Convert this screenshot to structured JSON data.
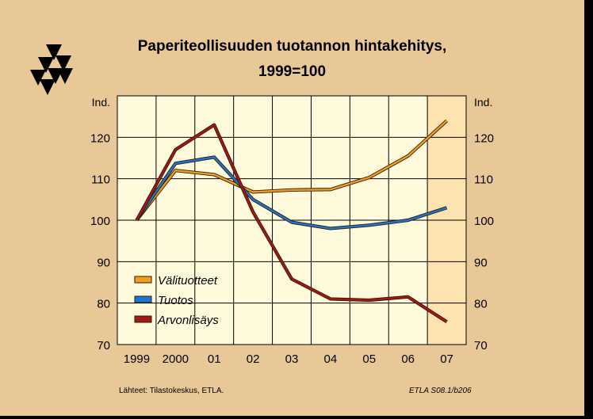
{
  "chart_data": {
    "type": "line",
    "title": "Paperiteollisuuden tuotannon hintakehitys,",
    "subtitle": "1999=100",
    "ylabel": "Ind.",
    "ylabel_right": "Ind.",
    "categories": [
      "1999",
      "2000",
      "01",
      "02",
      "03",
      "04",
      "05",
      "06",
      "07"
    ],
    "ylim": [
      70,
      130
    ],
    "yticks": [
      70,
      80,
      90,
      100,
      110,
      120
    ],
    "grid": true,
    "legend_position": "bottom-left",
    "forecast_category": "07",
    "colors": {
      "background": "#e9c898",
      "plot": "#fffadc",
      "forecast": "#fde3b0",
      "grid": "#000000"
    },
    "series": [
      {
        "name": "Välituotteet",
        "color": "#f0a020",
        "values": [
          100,
          112,
          111,
          106.8,
          107.3,
          107.4,
          110.3,
          115.5,
          124
        ]
      },
      {
        "name": "Tuotos",
        "color": "#1a78d0",
        "values": [
          100,
          113.7,
          115.2,
          105,
          99.5,
          98,
          98.8,
          100,
          103
        ]
      },
      {
        "name": "Arvonlisäys",
        "color": "#a01818",
        "values": [
          100,
          117,
          123,
          102,
          85.8,
          81,
          80.7,
          81.5,
          75.5
        ]
      }
    ]
  },
  "footer": {
    "source": "Lähteet:   Tilastokeskus, ETLA.",
    "code": "ETLA S08.1/b206"
  },
  "logo": {
    "name": "etla-logo-icon"
  }
}
